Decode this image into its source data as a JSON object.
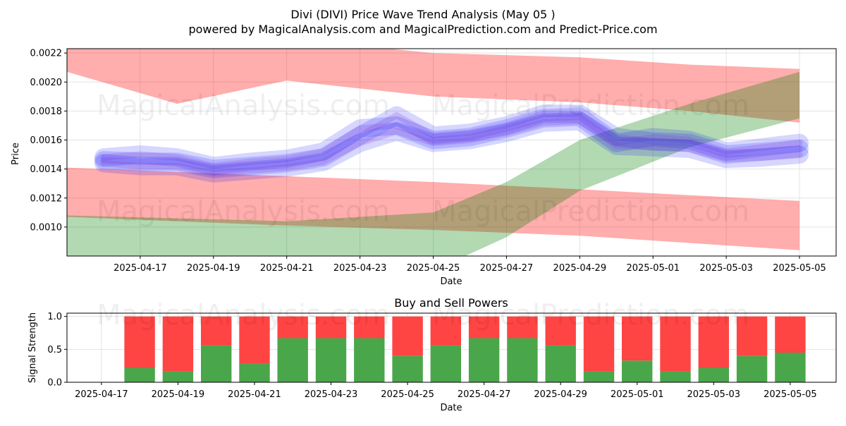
{
  "title": "Divi (DIVI) Price Wave Trend Analysis (May 05 )",
  "subtitle": "powered by MagicalAnalysis.com and MagicalPrediction.com and Predict-Price.com",
  "watermarks": [
    "MagicalAnalysis.com",
    "MagicalPrediction.com"
  ],
  "colors": {
    "red_band": "#ff0000",
    "green_band": "#008000",
    "blue_wave": "#0000ff",
    "buy": "#4aa64a",
    "sell": "#ff4444"
  },
  "chart_data": [
    {
      "type": "area",
      "title": "",
      "xlabel": "Date",
      "ylabel": "Price",
      "grid": true,
      "x_range": [
        "2025-04-15",
        "2025-05-06"
      ],
      "ylim": [
        0.0008,
        0.00223
      ],
      "x_ticks": [
        "2025-04-17",
        "2025-04-19",
        "2025-04-21",
        "2025-04-23",
        "2025-04-25",
        "2025-04-27",
        "2025-04-29",
        "2025-05-01",
        "2025-05-03",
        "2025-05-05"
      ],
      "y_ticks": [
        "0.0010",
        "0.0012",
        "0.0014",
        "0.0016",
        "0.0018",
        "0.0020",
        "0.0022"
      ],
      "bands": [
        {
          "color": "red",
          "points": [
            {
              "x": "2025-04-15",
              "upper": 0.00236,
              "lower": 0.00207
            },
            {
              "x": "2025-04-18",
              "upper": 0.00228,
              "lower": 0.00185
            },
            {
              "x": "2025-04-21",
              "upper": 0.0023,
              "lower": 0.00201
            },
            {
              "x": "2025-04-25",
              "upper": 0.0022,
              "lower": 0.0019
            },
            {
              "x": "2025-04-29",
              "upper": 0.00217,
              "lower": 0.00186
            },
            {
              "x": "2025-05-02",
              "upper": 0.00212,
              "lower": 0.0018
            },
            {
              "x": "2025-05-05",
              "upper": 0.00209,
              "lower": 0.00172
            }
          ]
        },
        {
          "color": "red",
          "points": [
            {
              "x": "2025-04-15",
              "upper": 0.00141,
              "lower": 0.00107
            },
            {
              "x": "2025-04-21",
              "upper": 0.00135,
              "lower": 0.00101
            },
            {
              "x": "2025-04-25",
              "upper": 0.00131,
              "lower": 0.00098
            },
            {
              "x": "2025-04-29",
              "upper": 0.00126,
              "lower": 0.00094
            },
            {
              "x": "2025-05-02",
              "upper": 0.00122,
              "lower": 0.00089
            },
            {
              "x": "2025-05-05",
              "upper": 0.00118,
              "lower": 0.00084
            }
          ]
        },
        {
          "color": "green",
          "points": [
            {
              "x": "2025-04-15",
              "upper": 0.00108,
              "lower": 0.0008
            },
            {
              "x": "2025-04-21",
              "upper": 0.00104,
              "lower": 0.0006
            },
            {
              "x": "2025-04-25",
              "upper": 0.0011,
              "lower": 0.0007
            },
            {
              "x": "2025-04-27",
              "upper": 0.00131,
              "lower": 0.00093
            },
            {
              "x": "2025-04-29",
              "upper": 0.0016,
              "lower": 0.00125
            },
            {
              "x": "2025-05-02",
              "upper": 0.00185,
              "lower": 0.00155
            },
            {
              "x": "2025-05-05",
              "upper": 0.00207,
              "lower": 0.00175
            }
          ]
        }
      ],
      "series": [
        {
          "color": "blue",
          "x": [
            "2025-04-16",
            "2025-04-17",
            "2025-04-18",
            "2025-04-19",
            "2025-04-20",
            "2025-04-21",
            "2025-04-22",
            "2025-04-23",
            "2025-04-24",
            "2025-04-25",
            "2025-04-26",
            "2025-04-27",
            "2025-04-28",
            "2025-04-29",
            "2025-04-30",
            "2025-05-01",
            "2025-05-02",
            "2025-05-03",
            "2025-05-04",
            "2025-05-05"
          ],
          "values": [
            0.00146,
            0.00145,
            0.00145,
            0.0014,
            0.00142,
            0.00144,
            0.00148,
            0.00163,
            0.00177,
            0.00163,
            0.00165,
            0.0017,
            0.00178,
            0.00178,
            0.00162,
            0.00159,
            0.00158,
            0.0015,
            0.00152,
            0.00154
          ]
        },
        {
          "color": "blue",
          "x": [
            "2025-04-16",
            "2025-04-17",
            "2025-04-18",
            "2025-04-19",
            "2025-04-20",
            "2025-04-21",
            "2025-04-22",
            "2025-04-23",
            "2025-04-24",
            "2025-04-25",
            "2025-04-26",
            "2025-04-27",
            "2025-04-28",
            "2025-04-29",
            "2025-04-30",
            "2025-05-01",
            "2025-05-02",
            "2025-05-03",
            "2025-05-04",
            "2025-05-05"
          ],
          "values": [
            0.00148,
            0.0015,
            0.00148,
            0.00142,
            0.00145,
            0.00147,
            0.00152,
            0.00168,
            0.0017,
            0.0016,
            0.00162,
            0.00168,
            0.00175,
            0.00176,
            0.00158,
            0.00162,
            0.0016,
            0.00152,
            0.00155,
            0.00158
          ]
        },
        {
          "color": "blue",
          "x": [
            "2025-04-16",
            "2025-04-17",
            "2025-04-18",
            "2025-04-19",
            "2025-04-20",
            "2025-04-21",
            "2025-04-22",
            "2025-04-23",
            "2025-04-24",
            "2025-04-25",
            "2025-04-26",
            "2025-04-27",
            "2025-04-28",
            "2025-04-29",
            "2025-04-30",
            "2025-05-01",
            "2025-05-02",
            "2025-05-03",
            "2025-05-04",
            "2025-05-05"
          ],
          "values": [
            0.00144,
            0.00142,
            0.00142,
            0.00137,
            0.00139,
            0.00141,
            0.00145,
            0.00158,
            0.00166,
            0.00158,
            0.0016,
            0.00165,
            0.00172,
            0.00173,
            0.00156,
            0.00155,
            0.00154,
            0.00147,
            0.00148,
            0.0015
          ]
        }
      ]
    },
    {
      "type": "bar",
      "title": "Buy and Sell Powers",
      "xlabel": "Date",
      "ylabel": "Signal Strength",
      "grid": true,
      "ylim": [
        0,
        1.05
      ],
      "x_range": [
        "2025-04-17",
        "2025-05-06"
      ],
      "x_ticks": [
        "2025-04-17",
        "2025-04-19",
        "2025-04-21",
        "2025-04-23",
        "2025-04-25",
        "2025-04-27",
        "2025-04-29",
        "2025-05-01",
        "2025-05-03",
        "2025-05-05"
      ],
      "y_ticks": [
        "0.0",
        "0.5",
        "1.0"
      ],
      "categories": [
        "2025-04-18",
        "2025-04-19",
        "2025-04-20",
        "2025-04-21",
        "2025-04-22",
        "2025-04-23",
        "2025-04-24",
        "2025-04-25",
        "2025-04-26",
        "2025-04-27",
        "2025-04-28",
        "2025-04-29",
        "2025-04-30",
        "2025-05-01",
        "2025-05-02",
        "2025-05-03",
        "2025-05-04",
        "2025-05-05"
      ],
      "series": [
        {
          "color": "green",
          "values": [
            0.22,
            0.17,
            0.56,
            0.28,
            0.67,
            0.67,
            0.67,
            0.4,
            0.56,
            0.67,
            0.67,
            0.56,
            0.17,
            0.33,
            0.17,
            0.22,
            0.4,
            0.45
          ]
        },
        {
          "color": "red",
          "values": [
            0.78,
            0.83,
            0.44,
            0.72,
            0.33,
            0.33,
            0.33,
            0.6,
            0.44,
            0.33,
            0.33,
            0.44,
            0.83,
            0.67,
            0.83,
            0.78,
            0.6,
            0.55
          ]
        }
      ]
    }
  ]
}
